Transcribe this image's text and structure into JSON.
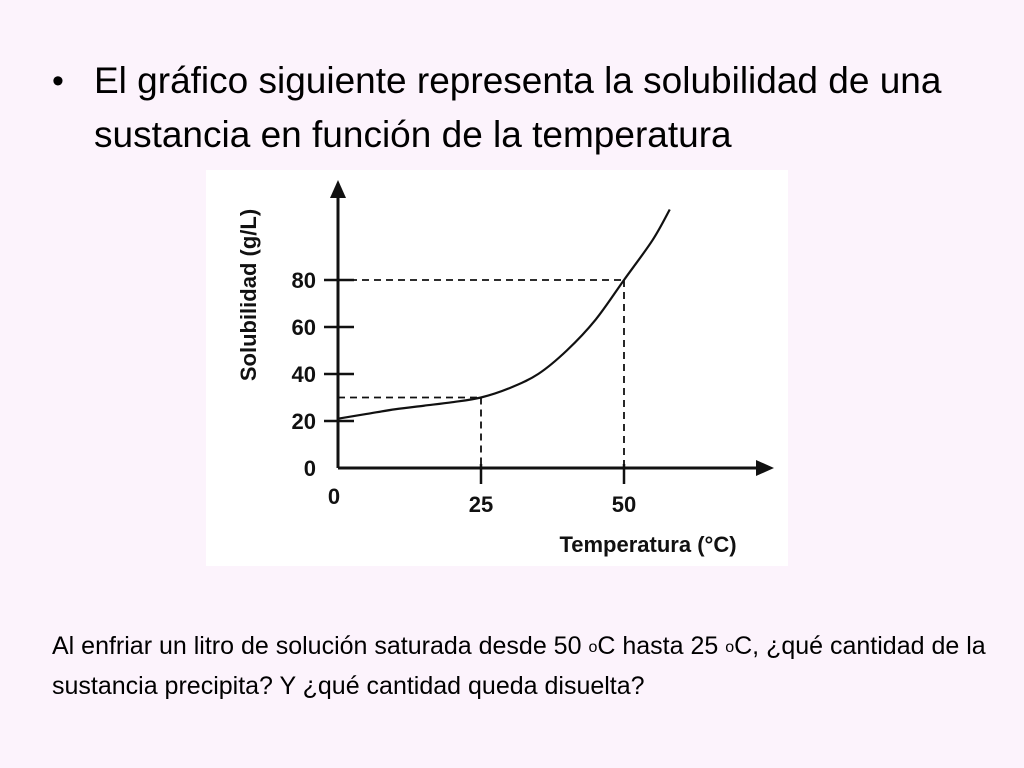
{
  "slide": {
    "bullet_symbol": "•",
    "bullet_text": "El gráfico siguiente representa la solubilidad de una sustancia en función de la temperatura",
    "question": {
      "part1": "Al enfriar un litro de solución saturada desde 50 ",
      "sup1": "o",
      "part2": "C hasta 25 ",
      "sup2": "o",
      "part3": "C, ¿qué cantidad de la sustancia precipita? Y ¿qué cantidad queda disuelta?"
    }
  },
  "chart_data": {
    "type": "line",
    "title": "",
    "xlabel": "Temperatura (°C)",
    "ylabel": "Solubilidad (g/L)",
    "xlim": [
      0,
      60
    ],
    "ylim": [
      0,
      110
    ],
    "x_ticks": [
      "0",
      "25",
      "50"
    ],
    "y_ticks": [
      "0",
      "20",
      "40",
      "60",
      "80"
    ],
    "grid": false,
    "legend": "none",
    "series": [
      {
        "x": [
          0,
          5,
          10,
          15,
          20,
          25,
          30,
          35,
          40,
          45,
          50,
          55,
          58
        ],
        "y": [
          21,
          23,
          25,
          26.5,
          28,
          30,
          34,
          40,
          50,
          63,
          80,
          97,
          110
        ]
      }
    ],
    "reference_points": [
      {
        "x": 25,
        "y": 30
      },
      {
        "x": 50,
        "y": 80
      }
    ]
  }
}
